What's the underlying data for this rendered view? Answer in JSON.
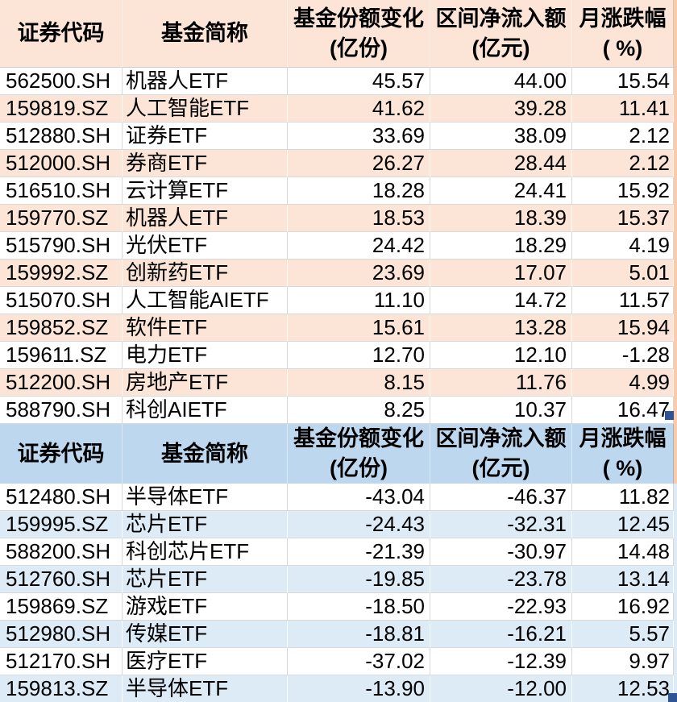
{
  "colors": {
    "peach_header": "#FCE4D6",
    "peach_row": "#FCE4D6",
    "peach_strip": "#F8CBAD",
    "blue_header": "#BDD7EE",
    "blue_row": "#DDEBF7",
    "handle": "#2F5496"
  },
  "chart_data": [
    {
      "type": "table",
      "name": "etf-share-increase-inflow-table",
      "theme": "peach",
      "headers": {
        "code": "证券代码",
        "name": "基金简称",
        "share_change": [
          "基金份额变化",
          "(亿份)"
        ],
        "net_inflow": [
          "区间净流入额",
          "(亿元)"
        ],
        "monthly_change": [
          "月涨跌幅",
          "( %)"
        ]
      },
      "rows": [
        {
          "code": "562500.SH",
          "name": "机器人ETF",
          "share_change": "45.57",
          "net_inflow": "44.00",
          "monthly_change": "15.54"
        },
        {
          "code": "159819.SZ",
          "name": "人工智能ETF",
          "share_change": "41.62",
          "net_inflow": "39.28",
          "monthly_change": "11.41"
        },
        {
          "code": "512880.SH",
          "name": "证券ETF",
          "share_change": "33.69",
          "net_inflow": "38.09",
          "monthly_change": "2.12"
        },
        {
          "code": "512000.SH",
          "name": "券商ETF",
          "share_change": "26.27",
          "net_inflow": "28.44",
          "monthly_change": "2.12"
        },
        {
          "code": "516510.SH",
          "name": "云计算ETF",
          "share_change": "18.28",
          "net_inflow": "24.41",
          "monthly_change": "15.92"
        },
        {
          "code": "159770.SZ",
          "name": "机器人ETF",
          "share_change": "18.53",
          "net_inflow": "18.39",
          "monthly_change": "15.37"
        },
        {
          "code": "515790.SH",
          "name": "光伏ETF",
          "share_change": "24.42",
          "net_inflow": "18.29",
          "monthly_change": "4.19"
        },
        {
          "code": "159992.SZ",
          "name": "创新药ETF",
          "share_change": "23.69",
          "net_inflow": "17.07",
          "monthly_change": "5.01"
        },
        {
          "code": "515070.SH",
          "name": "人工智能AIETF",
          "share_change": "11.10",
          "net_inflow": "14.72",
          "monthly_change": "11.57"
        },
        {
          "code": "159852.SZ",
          "name": "软件ETF",
          "share_change": "15.61",
          "net_inflow": "13.28",
          "monthly_change": "15.94"
        },
        {
          "code": "159611.SZ",
          "name": "电力ETF",
          "share_change": "12.70",
          "net_inflow": "12.10",
          "monthly_change": "-1.28"
        },
        {
          "code": "512200.SH",
          "name": "房地产ETF",
          "share_change": "8.15",
          "net_inflow": "11.76",
          "monthly_change": "4.99"
        },
        {
          "code": "588790.SH",
          "name": "科创AIETF",
          "share_change": "8.25",
          "net_inflow": "10.37",
          "monthly_change": "16.47"
        }
      ]
    },
    {
      "type": "table",
      "name": "etf-share-decrease-outflow-table",
      "theme": "blue",
      "headers": {
        "code": "证券代码",
        "name": "基金简称",
        "share_change": [
          "基金份额变化",
          "(亿份)"
        ],
        "net_inflow": [
          "区间净流入额",
          "(亿元)"
        ],
        "monthly_change": [
          "月涨跌幅",
          "( %)"
        ]
      },
      "rows": [
        {
          "code": "512480.SH",
          "name": "半导体ETF",
          "share_change": "-43.04",
          "net_inflow": "-46.37",
          "monthly_change": "11.82"
        },
        {
          "code": "159995.SZ",
          "name": "芯片ETF",
          "share_change": "-24.43",
          "net_inflow": "-32.31",
          "monthly_change": "12.45"
        },
        {
          "code": "588200.SH",
          "name": "科创芯片ETF",
          "share_change": "-21.39",
          "net_inflow": "-30.97",
          "monthly_change": "14.48"
        },
        {
          "code": "512760.SH",
          "name": "芯片ETF",
          "share_change": "-19.85",
          "net_inflow": "-23.78",
          "monthly_change": "13.14"
        },
        {
          "code": "159869.SZ",
          "name": "游戏ETF",
          "share_change": "-18.50",
          "net_inflow": "-22.93",
          "monthly_change": "16.92"
        },
        {
          "code": "512980.SH",
          "name": "传媒ETF",
          "share_change": "-18.81",
          "net_inflow": "-16.21",
          "monthly_change": "5.57"
        },
        {
          "code": "512170.SH",
          "name": "医疗ETF",
          "share_change": "-37.02",
          "net_inflow": "-12.39",
          "monthly_change": "9.97"
        },
        {
          "code": "159813.SZ",
          "name": "半导体ETF",
          "share_change": "-13.90",
          "net_inflow": "-12.00",
          "monthly_change": "12.53"
        }
      ]
    }
  ]
}
